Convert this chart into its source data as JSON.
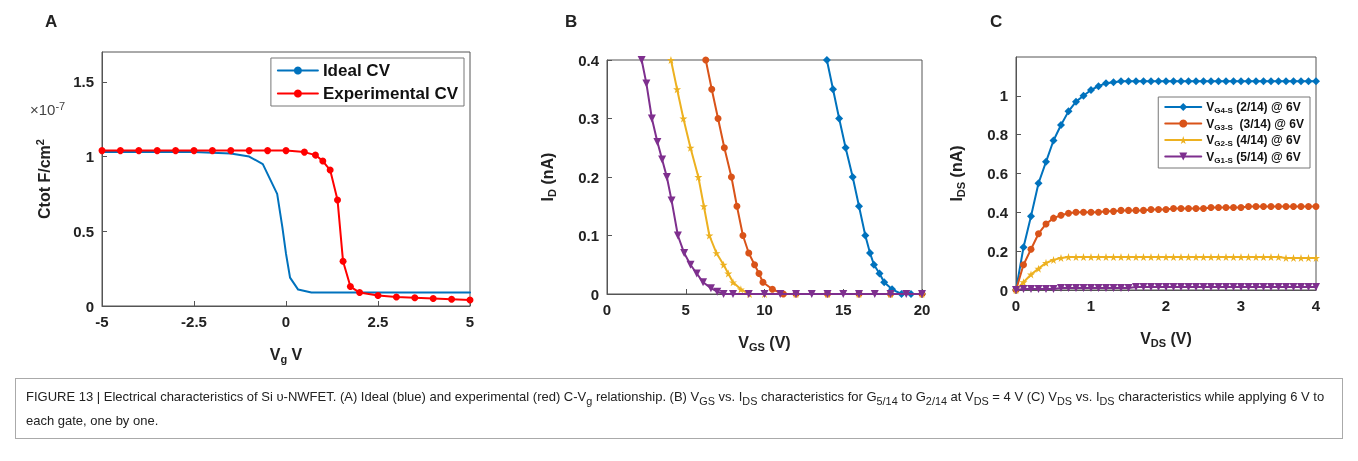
{
  "chart_data": [
    {
      "type": "line",
      "title": "A",
      "xlabel": "V$_{g}$ V",
      "ylabel": "Ctot F/cm$^{2}$",
      "annotations": [
        "×10$^{-7}$"
      ],
      "legend": "top right",
      "xlim": [
        -5,
        5
      ],
      "xticks": [
        -5,
        -2.5,
        0,
        2.5,
        5
      ],
      "ylim": [
        0,
        1.7
      ],
      "yticks": [
        0,
        0.5,
        1,
        1.5
      ],
      "series": [
        {
          "name": "Ideal CV",
          "color": "#0072bd",
          "marker": "none",
          "x": [
            -5,
            -2.5,
            -1.5,
            -1,
            -0.63,
            -0.24,
            -0.1,
            0,
            0.11,
            0.33,
            0.69,
            1,
            5
          ],
          "values": [
            1.03,
            1.03,
            1.02,
            1.0,
            0.95,
            0.75,
            0.53,
            0.35,
            0.19,
            0.11,
            0.09,
            0.09,
            0.09
          ]
        },
        {
          "name": "Experimental CV",
          "color": "#ff0000",
          "marker": "circle",
          "x": [
            -5,
            -4.5,
            -4,
            -3.5,
            -3,
            -2.5,
            -2,
            -1.5,
            -1,
            -0.5,
            0,
            0.5,
            0.8,
            1.0,
            1.2,
            1.4,
            1.55,
            1.75,
            2.0,
            2.5,
            3,
            3.5,
            4,
            4.5,
            5
          ],
          "values": [
            1.04,
            1.04,
            1.04,
            1.04,
            1.04,
            1.04,
            1.04,
            1.04,
            1.04,
            1.04,
            1.04,
            1.03,
            1.01,
            0.97,
            0.91,
            0.71,
            0.3,
            0.13,
            0.09,
            0.07,
            0.06,
            0.055,
            0.05,
            0.045,
            0.04
          ]
        }
      ]
    },
    {
      "type": "line",
      "title": "B",
      "xlabel": "V$_{GS}$ (V)",
      "ylabel": "I$_{D}$ (nA)",
      "xlim": [
        0,
        20
      ],
      "xticks": [
        0,
        5,
        10,
        15,
        20
      ],
      "ylim": [
        0,
        0.4
      ],
      "yticks": [
        0,
        0.1,
        0.2,
        0.3,
        0.4
      ],
      "series": [
        {
          "color": "#0072bd",
          "marker": "diamond",
          "x": [
            13.96,
            14.35,
            14.74,
            15.15,
            15.6,
            16.0,
            16.4,
            16.7,
            16.95,
            17.3,
            17.6,
            18.1,
            18.7,
            19.3,
            20
          ],
          "values": [
            0.4,
            0.35,
            0.3,
            0.25,
            0.2,
            0.15,
            0.1,
            0.07,
            0.05,
            0.035,
            0.02,
            0.008,
            0,
            0,
            0
          ]
        },
        {
          "color": "#d95319",
          "marker": "circle",
          "x": [
            6.27,
            6.65,
            7.05,
            7.45,
            7.9,
            8.25,
            8.63,
            9.0,
            9.37,
            9.65,
            9.9,
            10.5,
            11.2,
            12,
            14,
            16,
            18,
            20
          ],
          "values": [
            0.4,
            0.35,
            0.3,
            0.25,
            0.2,
            0.15,
            0.1,
            0.07,
            0.05,
            0.035,
            0.02,
            0.008,
            0,
            0,
            0,
            0,
            0,
            0
          ]
        },
        {
          "color": "#edb120",
          "marker": "star",
          "x": [
            4.06,
            4.45,
            4.85,
            5.3,
            5.8,
            6.15,
            6.5,
            6.95,
            7.4,
            7.7,
            8.0,
            8.5,
            9.05,
            10,
            12,
            14,
            16,
            18,
            20
          ],
          "values": [
            0.4,
            0.35,
            0.3,
            0.25,
            0.2,
            0.15,
            0.1,
            0.07,
            0.05,
            0.035,
            0.02,
            0.008,
            0,
            0,
            0,
            0,
            0,
            0,
            0
          ]
        },
        {
          "color": "#7e2f8e",
          "marker": "triangle",
          "x": [
            2.2,
            2.5,
            2.85,
            3.2,
            3.5,
            3.8,
            4.1,
            4.5,
            4.9,
            5.3,
            5.7,
            6.1,
            6.6,
            7.0,
            7.4,
            8,
            9,
            10,
            11,
            12,
            13,
            14,
            15,
            16,
            17,
            18,
            19,
            20
          ],
          "values": [
            0.4,
            0.36,
            0.3,
            0.26,
            0.23,
            0.2,
            0.16,
            0.1,
            0.07,
            0.05,
            0.035,
            0.02,
            0.01,
            0.004,
            0,
            0,
            0,
            0,
            0,
            0,
            0,
            0,
            0,
            0,
            0,
            0,
            0,
            0
          ]
        }
      ]
    },
    {
      "type": "line",
      "title": "C",
      "xlabel": "V$_{DS}$ (V)",
      "ylabel": "I$_{DS}$ (nA)",
      "legend": "right",
      "xlim": [
        0,
        4
      ],
      "xticks": [
        0,
        1,
        2,
        3,
        4
      ],
      "ylim": [
        0,
        1.2
      ],
      "yticks": [
        0,
        0.2,
        0.4,
        0.6,
        0.8,
        1
      ],
      "x": [
        0,
        0.1,
        0.2,
        0.3,
        0.4,
        0.5,
        0.6,
        0.7,
        0.8,
        0.9,
        1.0,
        1.1,
        1.2,
        1.3,
        1.4,
        1.5,
        1.6,
        1.7,
        1.8,
        1.9,
        2.0,
        2.1,
        2.2,
        2.3,
        2.4,
        2.5,
        2.6,
        2.7,
        2.8,
        2.9,
        3.0,
        3.1,
        3.2,
        3.3,
        3.4,
        3.5,
        3.6,
        3.7,
        3.8,
        3.9,
        4.0
      ],
      "series": [
        {
          "name": "V$_{G4-S}$ (2/14) @ 6V",
          "color": "#0072bd",
          "marker": "diamond",
          "values": [
            0,
            0.22,
            0.38,
            0.55,
            0.66,
            0.77,
            0.85,
            0.92,
            0.97,
            1.0,
            1.03,
            1.05,
            1.065,
            1.07,
            1.075,
            1.075,
            1.075,
            1.075,
            1.075,
            1.075,
            1.075,
            1.075,
            1.075,
            1.075,
            1.075,
            1.075,
            1.075,
            1.075,
            1.075,
            1.075,
            1.075,
            1.075,
            1.075,
            1.075,
            1.075,
            1.075,
            1.075,
            1.075,
            1.075,
            1.075,
            1.075
          ]
        },
        {
          "name": "V$_{G3-S}$  (3/14) @ 6V",
          "color": "#d95319",
          "marker": "circle",
          "values": [
            0,
            0.13,
            0.21,
            0.29,
            0.34,
            0.37,
            0.385,
            0.395,
            0.4,
            0.4,
            0.4,
            0.4,
            0.405,
            0.405,
            0.41,
            0.41,
            0.41,
            0.41,
            0.415,
            0.415,
            0.415,
            0.42,
            0.42,
            0.42,
            0.42,
            0.42,
            0.425,
            0.425,
            0.425,
            0.425,
            0.425,
            0.43,
            0.43,
            0.43,
            0.43,
            0.43,
            0.43,
            0.43,
            0.43,
            0.43,
            0.43
          ]
        },
        {
          "name": "V$_{G2-S}$ (4/14) @ 6V",
          "color": "#edb120",
          "marker": "star",
          "values": [
            0,
            0.04,
            0.08,
            0.11,
            0.14,
            0.155,
            0.165,
            0.17,
            0.17,
            0.17,
            0.17,
            0.17,
            0.17,
            0.17,
            0.17,
            0.17,
            0.17,
            0.17,
            0.17,
            0.17,
            0.17,
            0.17,
            0.17,
            0.17,
            0.17,
            0.17,
            0.17,
            0.17,
            0.17,
            0.17,
            0.17,
            0.17,
            0.17,
            0.17,
            0.17,
            0.17,
            0.165,
            0.165,
            0.165,
            0.165,
            0.165
          ]
        },
        {
          "name": "V$_{G1-S}$ (5/14) @ 6V",
          "color": "#7e2f8e",
          "marker": "triangle",
          "values": [
            0,
            0.005,
            0.005,
            0.005,
            0.005,
            0.005,
            0.01,
            0.01,
            0.01,
            0.01,
            0.01,
            0.01,
            0.01,
            0.01,
            0.01,
            0.01,
            0.015,
            0.015,
            0.015,
            0.015,
            0.015,
            0.015,
            0.015,
            0.015,
            0.015,
            0.015,
            0.015,
            0.015,
            0.015,
            0.015,
            0.015,
            0.015,
            0.015,
            0.015,
            0.015,
            0.015,
            0.015,
            0.015,
            0.015,
            0.015,
            0.015
          ]
        }
      ]
    },
    {
      "type": "other",
      "annotations": [
        "FIGURE 13 | Electrical characteristics of Si υ-NWFET. (A) Ideal (blue) and experimental (red) C-V$_{g}$ relationship. (B) V$_{GS}$ vs. I$_{DS}$ characteristics for G$_{5/14}$ to G$_{2/14}$ at V$_{DS}$ = 4 V (C) V$_{DS}$ vs. I$_{DS}$ characteristics while applying 6 V to each gate, one by one."
      ]
    }
  ]
}
